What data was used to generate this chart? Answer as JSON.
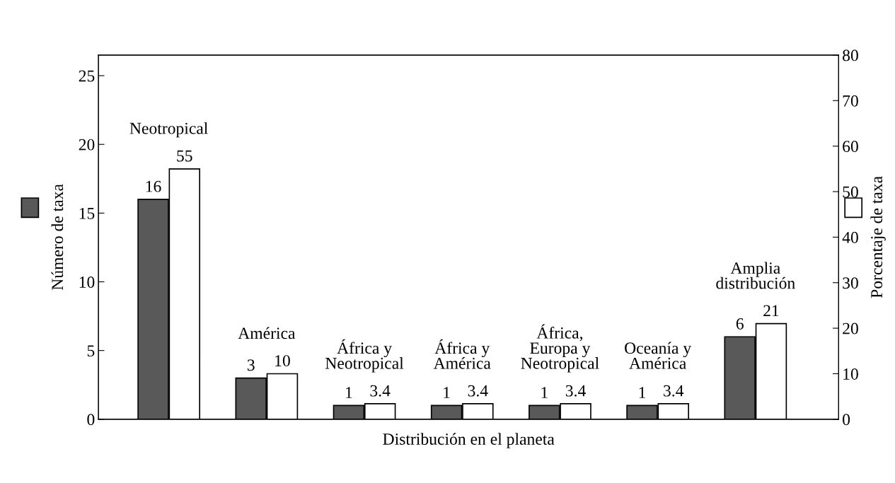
{
  "chart_data": {
    "type": "bar",
    "xlabel": "Distribución en el planeta",
    "ylabel": "Número de taxa",
    "y2label": "Porcentaje de taxa",
    "categories": [
      "Neotropical",
      "América",
      "África y\nNeotropical",
      "África y\nAmérica",
      "África,\nEuropa y\nNeotropical",
      "Oceanía y\nAmérica",
      "Amplia\ndistribución"
    ],
    "series": [
      {
        "color": "#595959",
        "values": [
          16,
          3,
          1,
          1,
          1,
          1,
          6
        ]
      },
      {
        "color": "#ffffff",
        "axis": "y2",
        "values": [
          55,
          10,
          3.4,
          3.4,
          3.4,
          3.4,
          21
        ]
      }
    ],
    "ylim": [
      0,
      26.5
    ],
    "yticks": [
      0,
      5,
      10,
      15,
      20,
      25
    ],
    "y2lim": [
      0,
      80
    ],
    "y2ticks": [
      0,
      10,
      20,
      30,
      40,
      50,
      60,
      70,
      80
    ],
    "data_labels": true,
    "grid": false,
    "legend": false
  }
}
